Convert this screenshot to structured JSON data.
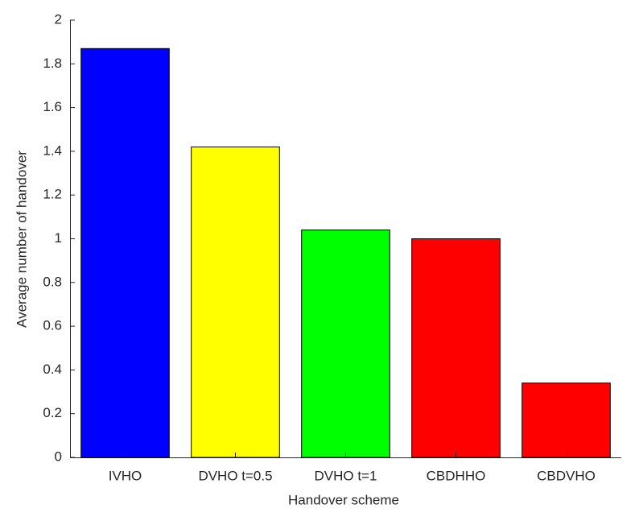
{
  "chart_data": {
    "type": "bar",
    "categories": [
      "IVHO",
      "DVHO t=0.5",
      "DVHO t=1",
      "CBDHHO",
      "CBDVHO"
    ],
    "values": [
      1.87,
      1.42,
      1.04,
      1.0,
      0.34
    ],
    "colors": [
      "#0000ff",
      "#ffff00",
      "#00ff00",
      "#ff0000",
      "#ff0000"
    ],
    "xlabel": "Handover scheme",
    "ylabel": "Average number of handover",
    "ylim": [
      0,
      2
    ],
    "yticks": [
      0,
      0.2,
      0.4,
      0.6,
      0.8,
      1,
      1.2,
      1.4,
      1.6,
      1.8,
      2
    ],
    "grid": false
  }
}
